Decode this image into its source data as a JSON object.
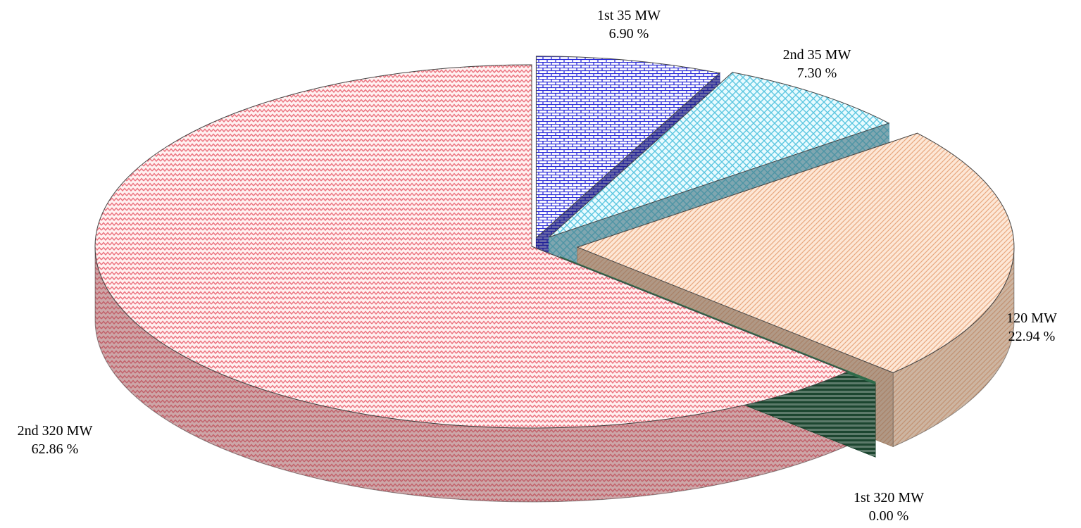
{
  "chart_data": {
    "type": "pie",
    "three_d": true,
    "exploded": true,
    "series": [
      {
        "name": "1st 35 MW",
        "value": 6.9,
        "value_label": "6.90 %",
        "color": "#2b2bd8",
        "pattern": "brick",
        "stroke": "#00007a"
      },
      {
        "name": "2nd 35 MW",
        "value": 7.3,
        "value_label": "7.30 %",
        "color": "#7fdcf2",
        "pattern": "herringbone",
        "stroke": "#2a7f96"
      },
      {
        "name": "120 MW",
        "value": 22.94,
        "value_label": "22.94 %",
        "color": "#f6c8a4",
        "pattern": "diagonal",
        "stroke": "#8a6a50"
      },
      {
        "name": "1st 320 MW",
        "value": 0.0,
        "value_label": "0.00 %",
        "color": "#2f6b4a",
        "pattern": "horizontal",
        "stroke": "#123a26"
      },
      {
        "name": "2nd 320 MW",
        "value": 62.86,
        "value_label": "62.86 %",
        "color": "#f07d86",
        "pattern": "zigzag",
        "stroke": "#a0404a"
      }
    ]
  }
}
